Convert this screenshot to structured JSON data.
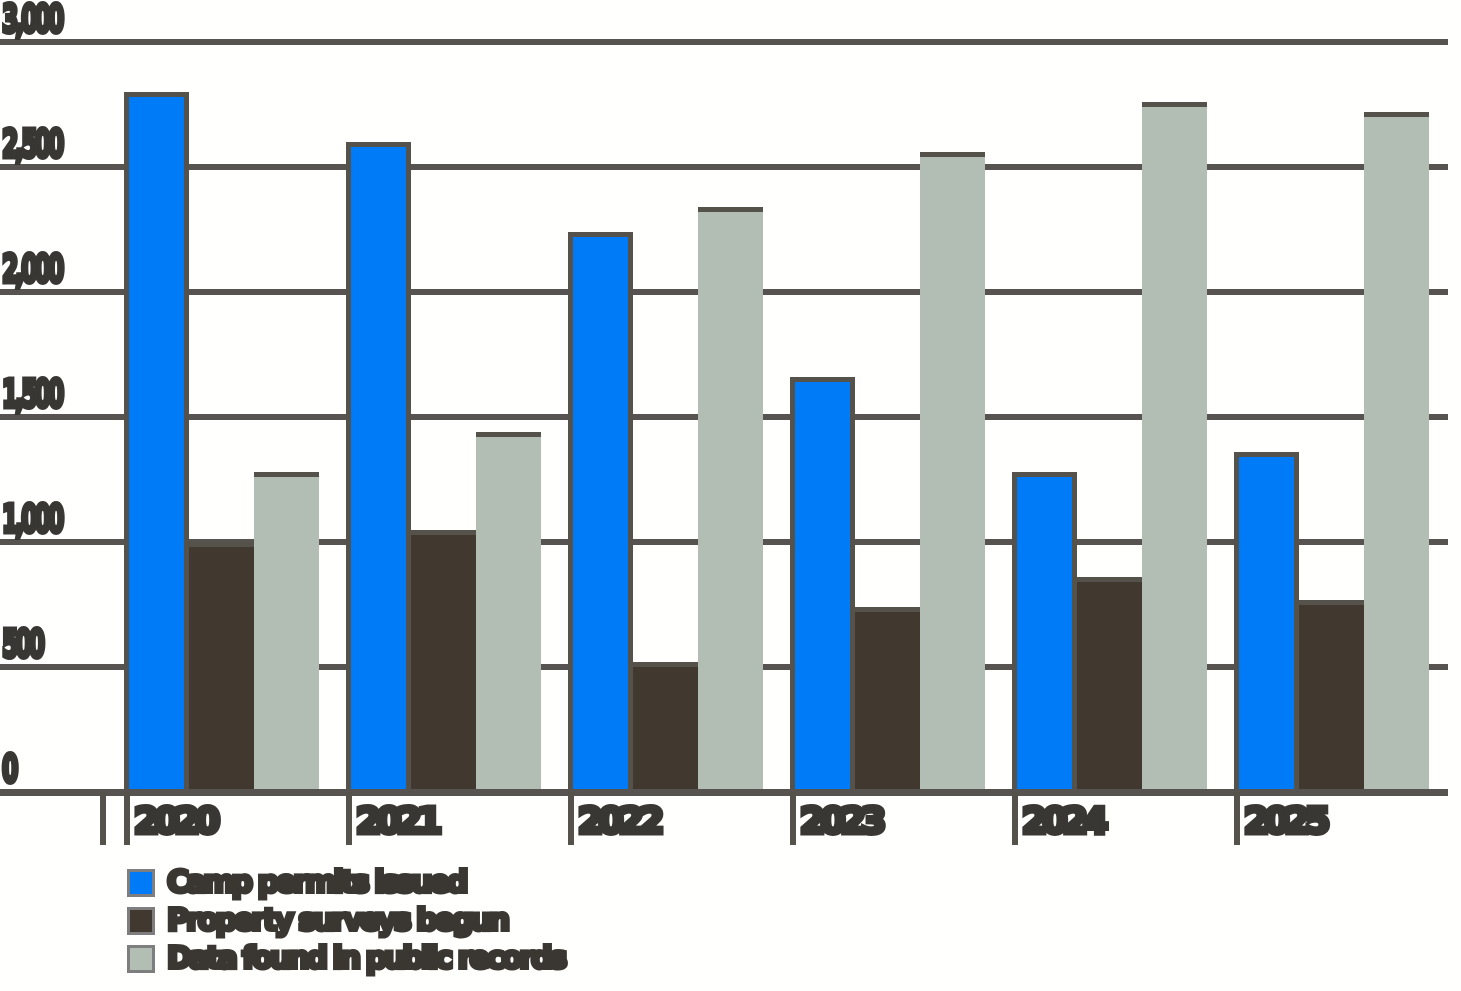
{
  "chart_data": {
    "type": "bar",
    "title": "",
    "xlabel": "",
    "ylabel": "",
    "categories": [
      "2020",
      "2021",
      "2022",
      "2023",
      "2024",
      "2025"
    ],
    "series": [
      {
        "name": "Camp permits issued",
        "color": "#007BF7",
        "values": [
          2800,
          2600,
          2240,
          1660,
          1280,
          1360
        ]
      },
      {
        "name": "Property surveys begun",
        "color": "#41382F",
        "values": [
          1000,
          1050,
          520,
          740,
          860,
          770
        ]
      },
      {
        "name": "Data found in public records",
        "color": "#B2BDB3",
        "values": [
          1280,
          1440,
          2340,
          2560,
          2760,
          2720
        ]
      }
    ],
    "y_axis": {
      "min": 0,
      "max": 3000,
      "tick_step": 500,
      "tick_values": [
        0,
        500,
        1000,
        1500,
        2000,
        2500,
        3000
      ],
      "tick_labels": [
        "0",
        "500",
        "1,000",
        "1,500",
        "2,000",
        "2,500",
        "3,000"
      ]
    },
    "grid": true,
    "legend_position": "bottom-left"
  },
  "colors": {
    "bar_blue": "#007BF7",
    "bar_dark": "#41382F",
    "bar_gray": "#B2BDB3",
    "gridline": "#565351",
    "bar_outline": "#55514B",
    "label_text": "#393734",
    "background": "#FFFFFF"
  }
}
